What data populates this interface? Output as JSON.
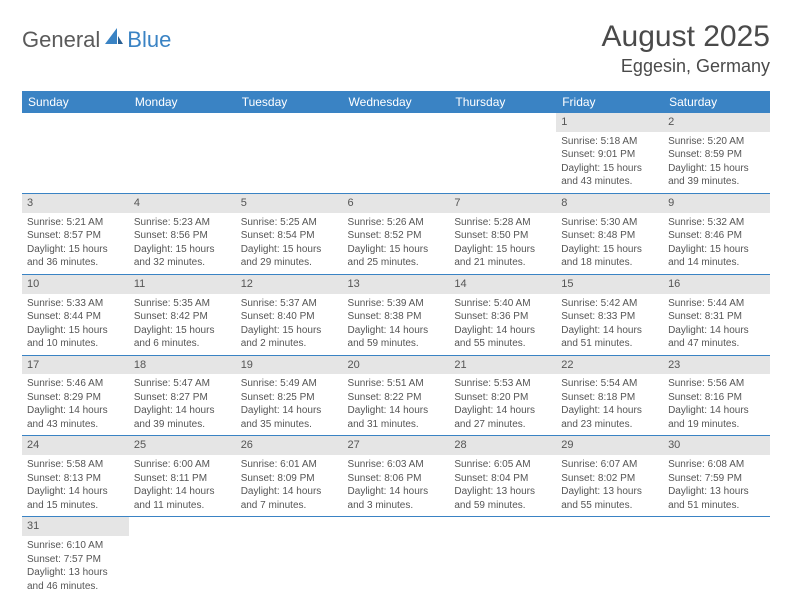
{
  "logo": {
    "part1": "General",
    "part2": "Blue"
  },
  "header": {
    "month": "August 2025",
    "location": "Eggesin, Germany"
  },
  "colors": {
    "accent": "#3a83c4",
    "grey_bar": "#e5e5e5",
    "text": "#4a4a4a",
    "white": "#ffffff"
  },
  "weekdays": [
    "Sunday",
    "Monday",
    "Tuesday",
    "Wednesday",
    "Thursday",
    "Friday",
    "Saturday"
  ],
  "weeks": [
    [
      {
        "day": "",
        "sunrise": "",
        "sunset": "",
        "daylight": ""
      },
      {
        "day": "",
        "sunrise": "",
        "sunset": "",
        "daylight": ""
      },
      {
        "day": "",
        "sunrise": "",
        "sunset": "",
        "daylight": ""
      },
      {
        "day": "",
        "sunrise": "",
        "sunset": "",
        "daylight": ""
      },
      {
        "day": "",
        "sunrise": "",
        "sunset": "",
        "daylight": ""
      },
      {
        "day": "1",
        "sunrise": "Sunrise: 5:18 AM",
        "sunset": "Sunset: 9:01 PM",
        "daylight": "Daylight: 15 hours and 43 minutes."
      },
      {
        "day": "2",
        "sunrise": "Sunrise: 5:20 AM",
        "sunset": "Sunset: 8:59 PM",
        "daylight": "Daylight: 15 hours and 39 minutes."
      }
    ],
    [
      {
        "day": "3",
        "sunrise": "Sunrise: 5:21 AM",
        "sunset": "Sunset: 8:57 PM",
        "daylight": "Daylight: 15 hours and 36 minutes."
      },
      {
        "day": "4",
        "sunrise": "Sunrise: 5:23 AM",
        "sunset": "Sunset: 8:56 PM",
        "daylight": "Daylight: 15 hours and 32 minutes."
      },
      {
        "day": "5",
        "sunrise": "Sunrise: 5:25 AM",
        "sunset": "Sunset: 8:54 PM",
        "daylight": "Daylight: 15 hours and 29 minutes."
      },
      {
        "day": "6",
        "sunrise": "Sunrise: 5:26 AM",
        "sunset": "Sunset: 8:52 PM",
        "daylight": "Daylight: 15 hours and 25 minutes."
      },
      {
        "day": "7",
        "sunrise": "Sunrise: 5:28 AM",
        "sunset": "Sunset: 8:50 PM",
        "daylight": "Daylight: 15 hours and 21 minutes."
      },
      {
        "day": "8",
        "sunrise": "Sunrise: 5:30 AM",
        "sunset": "Sunset: 8:48 PM",
        "daylight": "Daylight: 15 hours and 18 minutes."
      },
      {
        "day": "9",
        "sunrise": "Sunrise: 5:32 AM",
        "sunset": "Sunset: 8:46 PM",
        "daylight": "Daylight: 15 hours and 14 minutes."
      }
    ],
    [
      {
        "day": "10",
        "sunrise": "Sunrise: 5:33 AM",
        "sunset": "Sunset: 8:44 PM",
        "daylight": "Daylight: 15 hours and 10 minutes."
      },
      {
        "day": "11",
        "sunrise": "Sunrise: 5:35 AM",
        "sunset": "Sunset: 8:42 PM",
        "daylight": "Daylight: 15 hours and 6 minutes."
      },
      {
        "day": "12",
        "sunrise": "Sunrise: 5:37 AM",
        "sunset": "Sunset: 8:40 PM",
        "daylight": "Daylight: 15 hours and 2 minutes."
      },
      {
        "day": "13",
        "sunrise": "Sunrise: 5:39 AM",
        "sunset": "Sunset: 8:38 PM",
        "daylight": "Daylight: 14 hours and 59 minutes."
      },
      {
        "day": "14",
        "sunrise": "Sunrise: 5:40 AM",
        "sunset": "Sunset: 8:36 PM",
        "daylight": "Daylight: 14 hours and 55 minutes."
      },
      {
        "day": "15",
        "sunrise": "Sunrise: 5:42 AM",
        "sunset": "Sunset: 8:33 PM",
        "daylight": "Daylight: 14 hours and 51 minutes."
      },
      {
        "day": "16",
        "sunrise": "Sunrise: 5:44 AM",
        "sunset": "Sunset: 8:31 PM",
        "daylight": "Daylight: 14 hours and 47 minutes."
      }
    ],
    [
      {
        "day": "17",
        "sunrise": "Sunrise: 5:46 AM",
        "sunset": "Sunset: 8:29 PM",
        "daylight": "Daylight: 14 hours and 43 minutes."
      },
      {
        "day": "18",
        "sunrise": "Sunrise: 5:47 AM",
        "sunset": "Sunset: 8:27 PM",
        "daylight": "Daylight: 14 hours and 39 minutes."
      },
      {
        "day": "19",
        "sunrise": "Sunrise: 5:49 AM",
        "sunset": "Sunset: 8:25 PM",
        "daylight": "Daylight: 14 hours and 35 minutes."
      },
      {
        "day": "20",
        "sunrise": "Sunrise: 5:51 AM",
        "sunset": "Sunset: 8:22 PM",
        "daylight": "Daylight: 14 hours and 31 minutes."
      },
      {
        "day": "21",
        "sunrise": "Sunrise: 5:53 AM",
        "sunset": "Sunset: 8:20 PM",
        "daylight": "Daylight: 14 hours and 27 minutes."
      },
      {
        "day": "22",
        "sunrise": "Sunrise: 5:54 AM",
        "sunset": "Sunset: 8:18 PM",
        "daylight": "Daylight: 14 hours and 23 minutes."
      },
      {
        "day": "23",
        "sunrise": "Sunrise: 5:56 AM",
        "sunset": "Sunset: 8:16 PM",
        "daylight": "Daylight: 14 hours and 19 minutes."
      }
    ],
    [
      {
        "day": "24",
        "sunrise": "Sunrise: 5:58 AM",
        "sunset": "Sunset: 8:13 PM",
        "daylight": "Daylight: 14 hours and 15 minutes."
      },
      {
        "day": "25",
        "sunrise": "Sunrise: 6:00 AM",
        "sunset": "Sunset: 8:11 PM",
        "daylight": "Daylight: 14 hours and 11 minutes."
      },
      {
        "day": "26",
        "sunrise": "Sunrise: 6:01 AM",
        "sunset": "Sunset: 8:09 PM",
        "daylight": "Daylight: 14 hours and 7 minutes."
      },
      {
        "day": "27",
        "sunrise": "Sunrise: 6:03 AM",
        "sunset": "Sunset: 8:06 PM",
        "daylight": "Daylight: 14 hours and 3 minutes."
      },
      {
        "day": "28",
        "sunrise": "Sunrise: 6:05 AM",
        "sunset": "Sunset: 8:04 PM",
        "daylight": "Daylight: 13 hours and 59 minutes."
      },
      {
        "day": "29",
        "sunrise": "Sunrise: 6:07 AM",
        "sunset": "Sunset: 8:02 PM",
        "daylight": "Daylight: 13 hours and 55 minutes."
      },
      {
        "day": "30",
        "sunrise": "Sunrise: 6:08 AM",
        "sunset": "Sunset: 7:59 PM",
        "daylight": "Daylight: 13 hours and 51 minutes."
      }
    ],
    [
      {
        "day": "31",
        "sunrise": "Sunrise: 6:10 AM",
        "sunset": "Sunset: 7:57 PM",
        "daylight": "Daylight: 13 hours and 46 minutes."
      },
      {
        "day": "",
        "sunrise": "",
        "sunset": "",
        "daylight": ""
      },
      {
        "day": "",
        "sunrise": "",
        "sunset": "",
        "daylight": ""
      },
      {
        "day": "",
        "sunrise": "",
        "sunset": "",
        "daylight": ""
      },
      {
        "day": "",
        "sunrise": "",
        "sunset": "",
        "daylight": ""
      },
      {
        "day": "",
        "sunrise": "",
        "sunset": "",
        "daylight": ""
      },
      {
        "day": "",
        "sunrise": "",
        "sunset": "",
        "daylight": ""
      }
    ]
  ]
}
